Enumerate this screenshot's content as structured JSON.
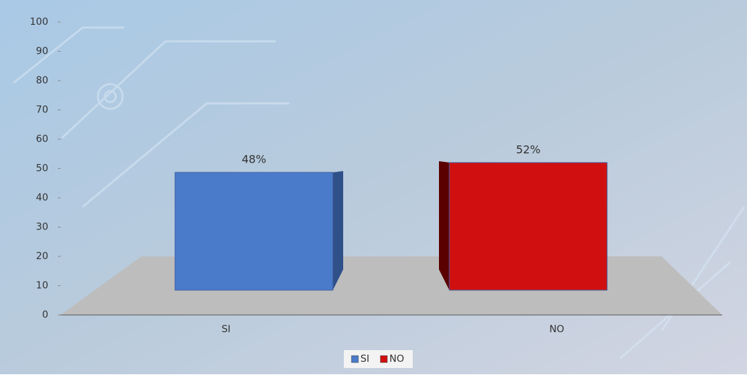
{
  "chart_data": {
    "type": "bar3d",
    "categories": [
      "SI",
      "NO"
    ],
    "values": [
      48,
      52
    ],
    "value_labels": [
      "48%",
      "52%"
    ],
    "colors": [
      "#4a7bcb",
      "#d01010"
    ],
    "ylim": [
      0,
      100
    ],
    "yticks": [
      0,
      10,
      20,
      30,
      40,
      50,
      60,
      70,
      80,
      90,
      100
    ],
    "legend": "bottom"
  }
}
